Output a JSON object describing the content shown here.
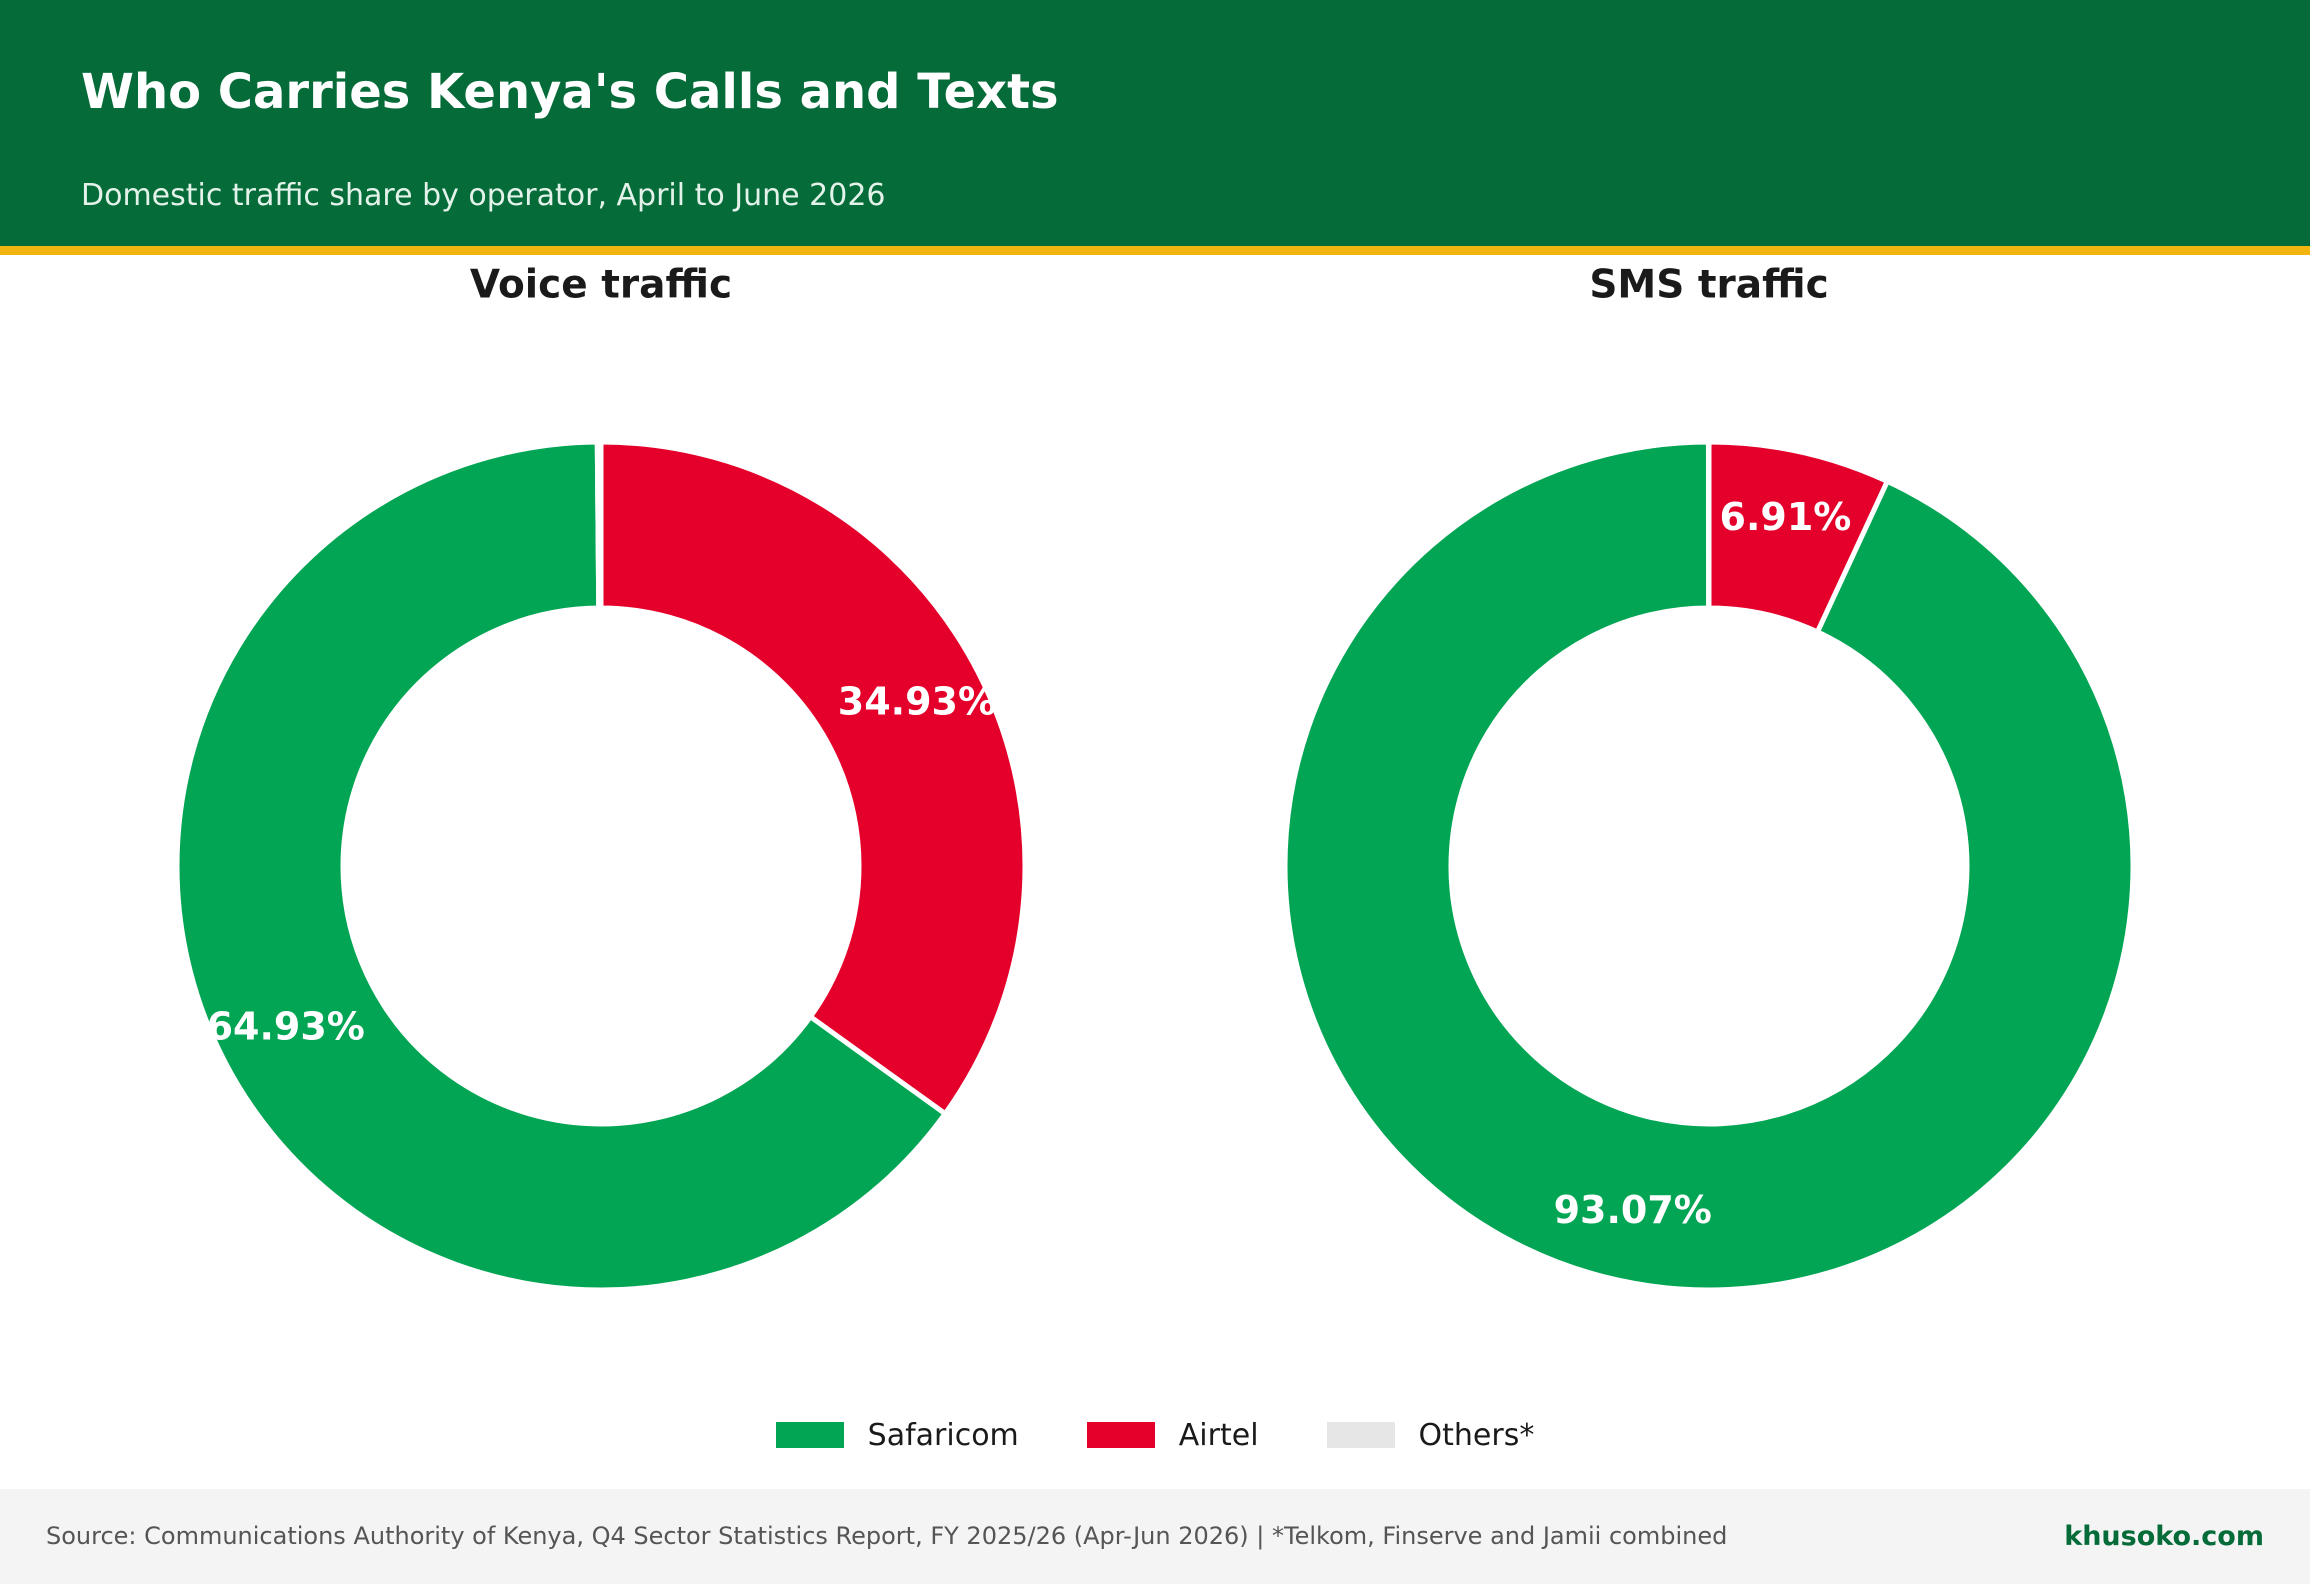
{
  "header": {
    "title": "Who Carries Kenya's Calls and Texts",
    "subtitle": "Domestic traffic share by operator, April to June 2026"
  },
  "colors": {
    "safaricom": "#02a553",
    "airtel": "#e4002b",
    "others": "#e6e6e6",
    "header_bg": "#046b39",
    "accent_stripe": "#f2b40f"
  },
  "legend": [
    {
      "label": "Safaricom",
      "color": "#02a553"
    },
    {
      "label": "Airtel",
      "color": "#e4002b"
    },
    {
      "label": "Others*",
      "color": "#e6e6e6"
    }
  ],
  "chart_data": [
    {
      "type": "pie",
      "style": "donut",
      "title": "Voice traffic",
      "slices": [
        {
          "name": "Airtel",
          "value": 34.93,
          "label": "34.93%",
          "color": "#e4002b"
        },
        {
          "name": "Safaricom",
          "value": 64.93,
          "label": "64.93%",
          "color": "#02a553"
        },
        {
          "name": "Others*",
          "value": 0.14,
          "label": "",
          "color": "#e6e6e6"
        }
      ]
    },
    {
      "type": "pie",
      "style": "donut",
      "title": "SMS traffic",
      "slices": [
        {
          "name": "Airtel",
          "value": 6.91,
          "label": "6.91%",
          "color": "#e4002b"
        },
        {
          "name": "Safaricom",
          "value": 93.07,
          "label": "93.07%",
          "color": "#02a553"
        },
        {
          "name": "Others*",
          "value": 0.02,
          "label": "",
          "color": "#e6e6e6"
        }
      ]
    }
  ],
  "footer": {
    "source": "Source: Communications Authority of Kenya, Q4 Sector Statistics Report, FY 2025/26 (Apr-Jun 2026)  |  *Telkom, Finserve and Jamii combined",
    "brand": "khusoko.com"
  }
}
